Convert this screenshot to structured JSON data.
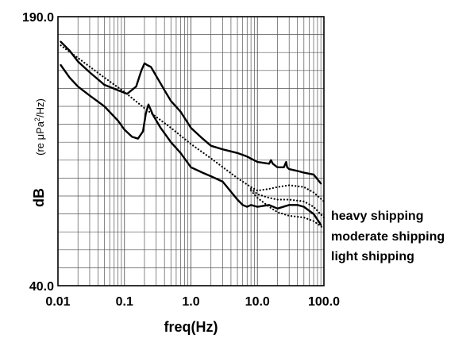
{
  "chart_data": {
    "type": "line",
    "title": "",
    "xlabel": "freq(Hz)",
    "ylabel": "dB",
    "yunit_prefix": "(re ",
    "yunit_mu": "μ",
    "yunit_pa": "Pa",
    "yunit_exp": "2",
    "yunit_suffix": "/Hz)",
    "xscale": "log",
    "xlim": [
      0.01,
      100.0
    ],
    "ylim": [
      40.0,
      190.0
    ],
    "ylim_labels": [
      "40.0",
      "190.0"
    ],
    "xticks": [
      0.01,
      0.1,
      1.0,
      10.0,
      100.0
    ],
    "xtick_labels": [
      "0.01",
      "0.1",
      "1.0",
      "10.0",
      "100.0"
    ],
    "grid": true,
    "legend": "none",
    "series": [
      {
        "kind": "solid",
        "x": [
          0.011,
          0.015,
          0.02,
          0.03,
          0.05,
          0.08,
          0.11,
          0.15,
          0.18,
          0.2,
          0.22,
          0.25,
          0.3,
          0.4,
          0.5,
          0.7,
          1.0,
          1.5,
          2.0,
          3.0,
          5.0,
          7.0,
          10.0,
          15.0,
          16.0,
          17.0,
          20.0,
          25.0,
          27.0,
          28.0,
          30.0,
          40.0,
          50.0,
          70.0,
          90.0
        ],
        "y": [
          176,
          171,
          165,
          159,
          152,
          149,
          147,
          151,
          160,
          164,
          163,
          162,
          157,
          149,
          143,
          137,
          128,
          122,
          118,
          116,
          114,
          112,
          109,
          108,
          110,
          108,
          106,
          106,
          109,
          106,
          105,
          104,
          103,
          102,
          97
        ]
      },
      {
        "kind": "solid",
        "x": [
          0.011,
          0.015,
          0.02,
          0.03,
          0.05,
          0.08,
          0.1,
          0.13,
          0.16,
          0.19,
          0.21,
          0.23,
          0.27,
          0.35,
          0.5,
          0.7,
          1.0,
          1.5,
          2.0,
          3.0,
          5.0,
          6.0,
          7.0,
          8.0,
          10.0,
          15.0,
          20.0,
          30.0,
          40.0,
          50.0,
          70.0,
          90.0
        ],
        "y": [
          163,
          156,
          151,
          146,
          140,
          132,
          127,
          123,
          122,
          126,
          136,
          141,
          135,
          128,
          120,
          114,
          106,
          103,
          101,
          98,
          88,
          85,
          84,
          85,
          84,
          85,
          83,
          85,
          85,
          84,
          80,
          74
        ]
      },
      {
        "kind": "dotted",
        "name": "heavy shipping",
        "x": [
          0.011,
          0.02,
          0.05,
          0.1,
          0.2,
          0.5,
          1.0,
          2.0,
          5.0,
          8.0,
          10.0,
          15.0,
          20.0,
          30.0,
          50.0,
          70.0,
          100.0
        ],
        "y": [
          174,
          167,
          156,
          148,
          139,
          128,
          119,
          111,
          100,
          95,
          93,
          94,
          95,
          96,
          95,
          92,
          87
        ]
      },
      {
        "kind": "dotted",
        "name": "moderate shipping",
        "x": [
          8.0,
          10.0,
          15.0,
          20.0,
          30.0,
          50.0,
          70.0,
          100.0
        ],
        "y": [
          94,
          91,
          89,
          88,
          88,
          87,
          84,
          78
        ]
      },
      {
        "kind": "dotted",
        "name": "light shipping",
        "x": [
          8.0,
          10.0,
          15.0,
          20.0,
          30.0,
          50.0,
          70.0,
          100.0
        ],
        "y": [
          93,
          89,
          84,
          81,
          79,
          78,
          76,
          72
        ]
      }
    ]
  }
}
